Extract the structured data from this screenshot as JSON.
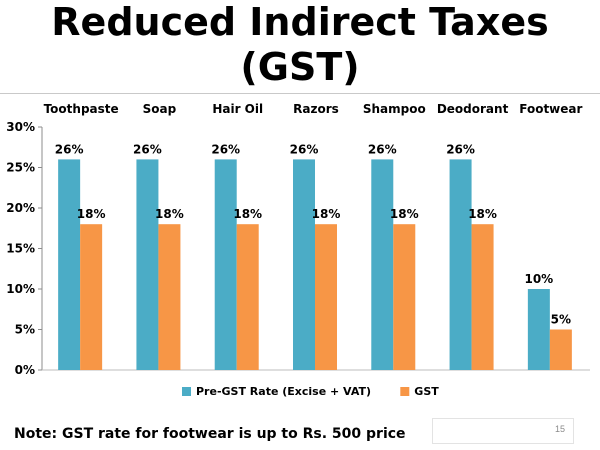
{
  "slide": {
    "title_line1": "Reduced Indirect Taxes",
    "title_line2": "(GST)",
    "note": "Note: GST rate for footwear is up to Rs. 500 price",
    "page_number": "15"
  },
  "chart_data": {
    "type": "bar",
    "categories": [
      "Toothpaste",
      "Soap",
      "Hair Oil",
      "Razors",
      "Shampoo",
      "Deodorant",
      "Footwear"
    ],
    "series": [
      {
        "name": "Pre-GST Rate (Excise + VAT)",
        "values": [
          26,
          26,
          26,
          26,
          26,
          26,
          10
        ],
        "color": "#4bacc6",
        "labels": [
          "26%",
          "26%",
          "26%",
          "26%",
          "26%",
          "26%",
          "10%"
        ]
      },
      {
        "name": "GST",
        "values": [
          18,
          18,
          18,
          18,
          18,
          18,
          5
        ],
        "color": "#f79646",
        "labels": [
          "18%",
          "18%",
          "18%",
          "18%",
          "18%",
          "18%",
          "5%"
        ]
      }
    ],
    "yticks": [
      "0%",
      "5%",
      "10%",
      "15%",
      "20%",
      "25%",
      "30%"
    ],
    "ylim": [
      0,
      30
    ],
    "category_axis_position": "top",
    "grid": false,
    "legend": "bottom"
  }
}
